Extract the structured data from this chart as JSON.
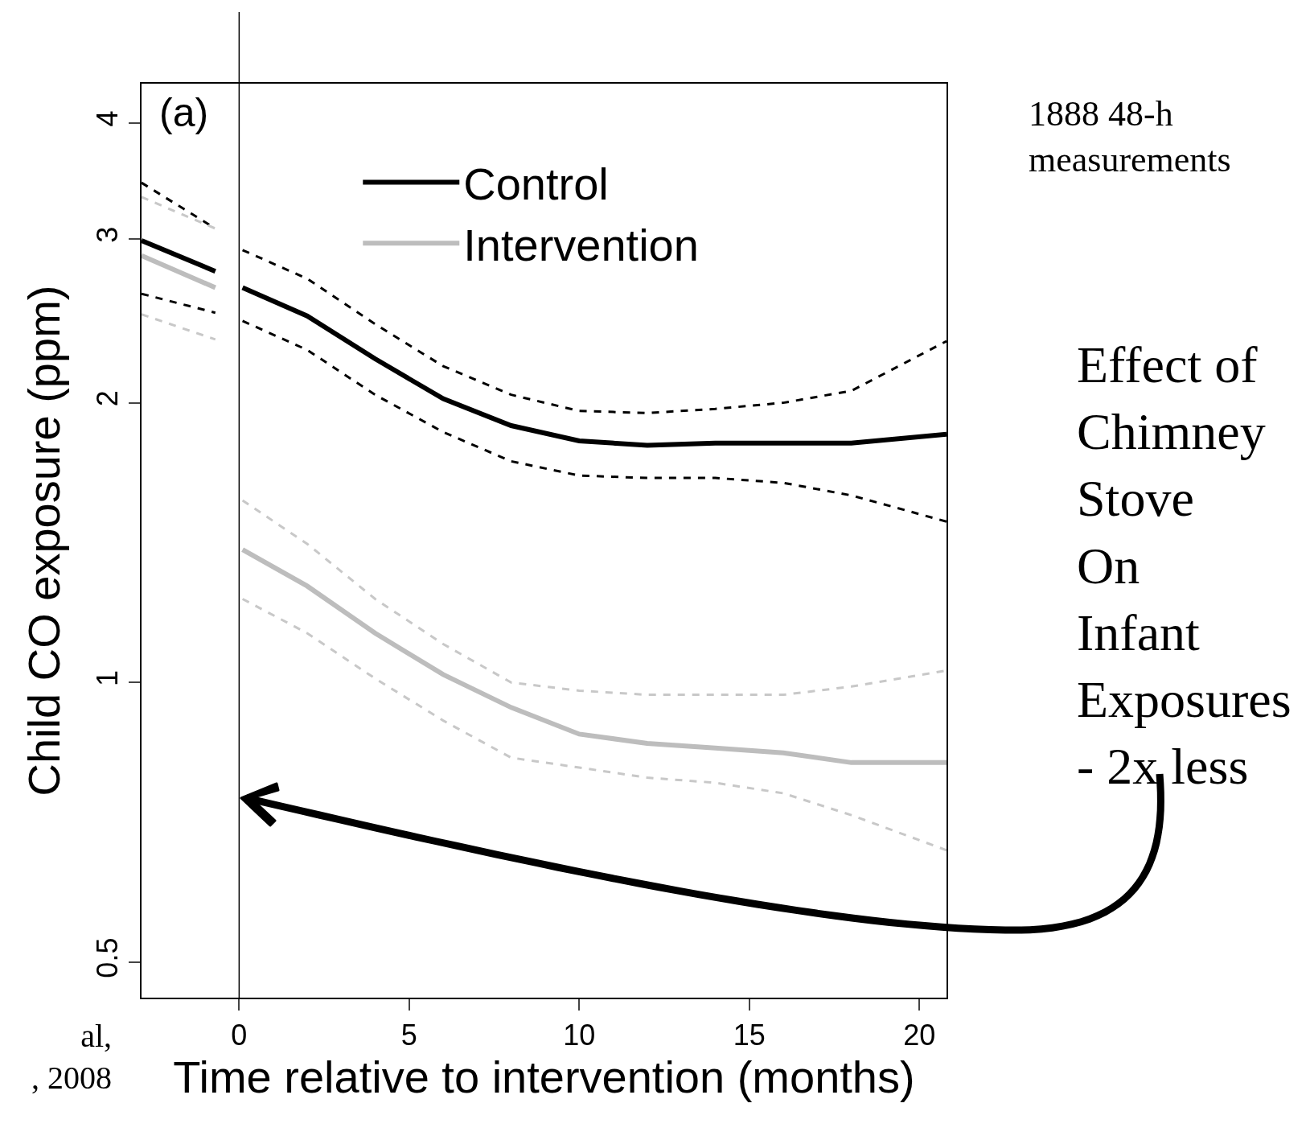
{
  "chart_data": {
    "type": "line",
    "xlabel": "Time relative to intervention (months)",
    "ylabel": "Child CO exposure (ppm)",
    "log": "y",
    "xlim": [
      -2.87,
      20.8
    ],
    "xticks": [
      0,
      5,
      10,
      15,
      20
    ],
    "ylim": [
      0.458,
      4.41
    ],
    "yticks": [
      0.5,
      1,
      2,
      3,
      4
    ],
    "grid": false,
    "legend": "top",
    "marker": "none",
    "series": [
      {
        "name": "Control",
        "color": "#000000",
        "line_style": "solid",
        "x": [
          -2.87,
          -0.7,
          -0.35,
          0.1,
          2,
          4,
          6,
          8,
          10,
          12,
          14,
          16,
          18,
          20.8
        ],
        "values": [
          2.99,
          2.77,
          null,
          2.66,
          2.48,
          2.23,
          2.02,
          1.89,
          1.82,
          1.8,
          1.81,
          1.81,
          1.81,
          1.85
        ]
      },
      {
        "name": "Intervention",
        "color": "#bdbdbd",
        "line_style": "solid",
        "x": [
          -2.87,
          -0.7,
          -0.35,
          0.1,
          2,
          4,
          6,
          8,
          10,
          12,
          14,
          16,
          18,
          20.8
        ],
        "values": [
          2.88,
          2.66,
          null,
          1.39,
          1.27,
          1.13,
          1.02,
          0.94,
          0.88,
          0.86,
          0.85,
          0.84,
          0.82,
          0.82
        ]
      },
      {
        "color": "#000000",
        "line_style": "dashed",
        "x": [
          -2.87,
          -0.7,
          -0.35,
          0.1,
          2,
          4,
          6,
          8,
          10,
          12,
          14,
          16,
          18,
          20.8
        ],
        "values": [
          3.45,
          3.08,
          null,
          2.92,
          2.72,
          2.43,
          2.19,
          2.04,
          1.96,
          1.95,
          1.97,
          2.0,
          2.06,
          2.33
        ]
      },
      {
        "color": "#000000",
        "line_style": "dashed",
        "x": [
          -2.87,
          -0.7,
          -0.35,
          0.1,
          2,
          4,
          6,
          8,
          10,
          12,
          14,
          16,
          18,
          20.8
        ],
        "values": [
          2.62,
          2.5,
          null,
          2.45,
          2.28,
          2.04,
          1.86,
          1.73,
          1.67,
          1.66,
          1.66,
          1.64,
          1.59,
          1.49
        ]
      },
      {
        "color": "#c8c8c8",
        "line_style": "dashed",
        "x": [
          -2.87,
          -0.7,
          -0.35,
          0.1,
          2,
          4,
          6,
          8,
          10,
          12,
          14,
          16,
          18,
          20.8
        ],
        "values": [
          3.33,
          3.08,
          null,
          1.57,
          1.41,
          1.23,
          1.1,
          1.0,
          0.98,
          0.97,
          0.97,
          0.97,
          0.99,
          1.03
        ]
      },
      {
        "color": "#c8c8c8",
        "line_style": "dashed",
        "x": [
          -2.87,
          -0.7,
          -0.35,
          0.1,
          2,
          4,
          6,
          8,
          10,
          12,
          14,
          16,
          18,
          20.8
        ],
        "values": [
          2.49,
          2.34,
          null,
          1.23,
          1.13,
          1.01,
          0.91,
          0.83,
          0.81,
          0.79,
          0.78,
          0.76,
          0.72,
          0.66
        ]
      }
    ],
    "ref_lines": [
      {
        "axis": "x",
        "value": 0,
        "color": "#000000",
        "line_style": "solid"
      }
    ],
    "annotations": [
      "(a)",
      "1888 48-h\nmeasurements",
      "Effect of\nChimney\nStove\nOn\nInfant\nExposures\n- 2x less",
      "al,\n, 2008"
    ]
  }
}
